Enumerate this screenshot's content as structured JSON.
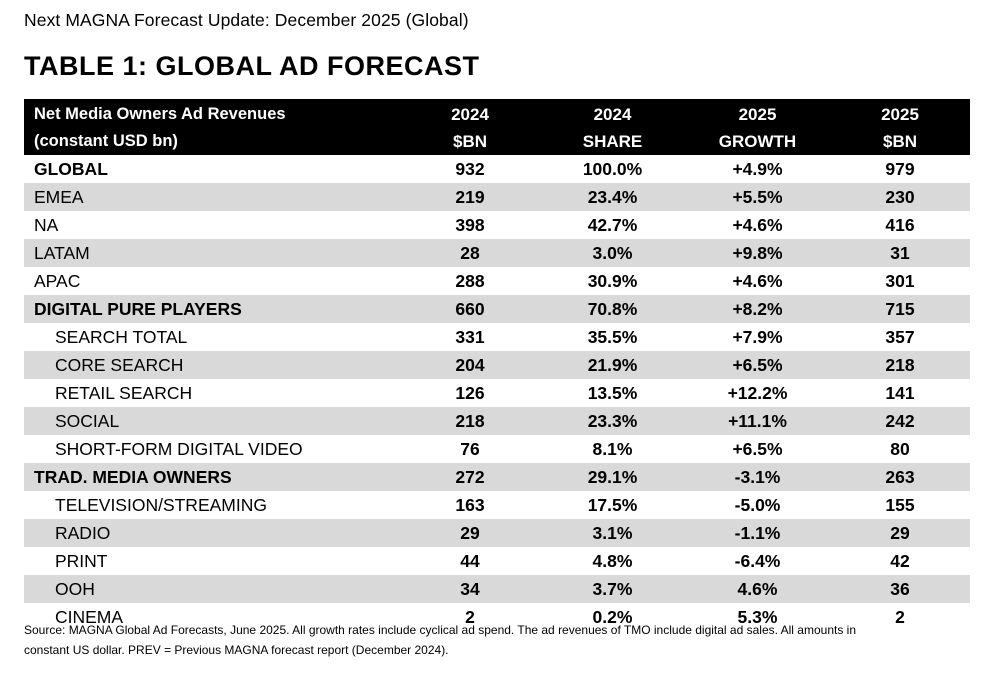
{
  "header": {
    "subtitle": "Next MAGNA Forecast Update: December 2025 (Global)",
    "title": "TABLE 1: GLOBAL AD FORECAST"
  },
  "table": {
    "columns": [
      {
        "line1": "Net Media Owners Ad Revenues",
        "line2": "(constant USD bn)"
      },
      {
        "line1": "2024",
        "line2": "$BN"
      },
      {
        "line1": "2024",
        "line2": "SHARE"
      },
      {
        "line1": "2025",
        "line2": "GROWTH"
      },
      {
        "line1": "2025",
        "line2": "$BN"
      }
    ],
    "rows": [
      {
        "label": "GLOBAL",
        "bn_2024": "932",
        "share_2024": "100.0%",
        "growth_2025": "+4.9%",
        "bn_2025": "979",
        "level": "total"
      },
      {
        "label": "EMEA",
        "bn_2024": "219",
        "share_2024": "23.4%",
        "growth_2025": "+5.5%",
        "bn_2025": "230",
        "level": "region"
      },
      {
        "label": "NA",
        "bn_2024": "398",
        "share_2024": "42.7%",
        "growth_2025": "+4.6%",
        "bn_2025": "416",
        "level": "region"
      },
      {
        "label": "LATAM",
        "bn_2024": "28",
        "share_2024": "3.0%",
        "growth_2025": "+9.8%",
        "bn_2025": "31",
        "level": "region"
      },
      {
        "label": "APAC",
        "bn_2024": "288",
        "share_2024": "30.9%",
        "growth_2025": "+4.6%",
        "bn_2025": "301",
        "level": "region"
      },
      {
        "label": "DIGITAL PURE PLAYERS",
        "bn_2024": "660",
        "share_2024": "70.8%",
        "growth_2025": "+8.2%",
        "bn_2025": "715",
        "level": "total"
      },
      {
        "label": "SEARCH TOTAL",
        "bn_2024": "331",
        "share_2024": "35.5%",
        "growth_2025": "+7.9%",
        "bn_2025": "357",
        "level": "sub"
      },
      {
        "label": "CORE SEARCH",
        "bn_2024": "204",
        "share_2024": "21.9%",
        "growth_2025": "+6.5%",
        "bn_2025": "218",
        "level": "sub"
      },
      {
        "label": "RETAIL SEARCH",
        "bn_2024": "126",
        "share_2024": "13.5%",
        "growth_2025": "+12.2%",
        "bn_2025": "141",
        "level": "sub"
      },
      {
        "label": "SOCIAL",
        "bn_2024": "218",
        "share_2024": "23.3%",
        "growth_2025": "+11.1%",
        "bn_2025": "242",
        "level": "sub"
      },
      {
        "label": "SHORT-FORM DIGITAL VIDEO",
        "bn_2024": "76",
        "share_2024": "8.1%",
        "growth_2025": "+6.5%",
        "bn_2025": "80",
        "level": "sub"
      },
      {
        "label": "TRAD. MEDIA OWNERS",
        "bn_2024": "272",
        "share_2024": "29.1%",
        "growth_2025": "-3.1%",
        "bn_2025": "263",
        "level": "total"
      },
      {
        "label": "TELEVISION/STREAMING",
        "bn_2024": "163",
        "share_2024": "17.5%",
        "growth_2025": "-5.0%",
        "bn_2025": "155",
        "level": "sub"
      },
      {
        "label": "RADIO",
        "bn_2024": "29",
        "share_2024": "3.1%",
        "growth_2025": "-1.1%",
        "bn_2025": "29",
        "level": "sub"
      },
      {
        "label": "PRINT",
        "bn_2024": "44",
        "share_2024": "4.8%",
        "growth_2025": "-6.4%",
        "bn_2025": "42",
        "level": "sub"
      },
      {
        "label": "OOH",
        "bn_2024": "34",
        "share_2024": "3.7%",
        "growth_2025": "4.6%",
        "bn_2025": "36",
        "level": "sub"
      },
      {
        "label": "CINEMA",
        "bn_2024": "2",
        "share_2024": "0.2%",
        "growth_2025": "5.3%",
        "bn_2025": "2",
        "level": "sub"
      }
    ]
  },
  "footnote": {
    "line1": "Source: MAGNA Global Ad Forecasts, June 2025. All growth rates include cyclical ad spend. The ad revenues of TMO include digital ad sales. All amounts in",
    "line2": "constant US dollar. PREV = Previous MAGNA forecast report (December 2024)."
  },
  "colors": {
    "header_bg": "#000000",
    "header_text": "#ffffff",
    "stripe_bg": "#d9d9d9"
  }
}
